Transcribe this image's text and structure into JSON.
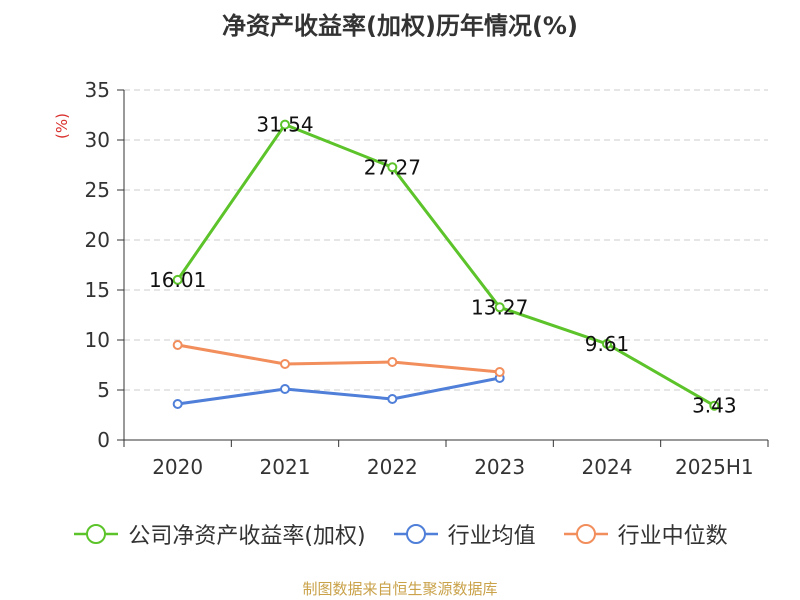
{
  "chart_data": {
    "type": "line",
    "title": "净资产收益率(加权)历年情况(%)",
    "ylabel": "(%)",
    "categories": [
      "2020",
      "2021",
      "2022",
      "2023",
      "2024",
      "2025H1"
    ],
    "ylim": [
      0,
      35
    ],
    "yticks": [
      0,
      5,
      10,
      15,
      20,
      25,
      30,
      35
    ],
    "grid": true,
    "legend_position": "bottom",
    "series": [
      {
        "name": "公司净资产收益率(加权)",
        "color": "#5cc42a",
        "values": [
          16.01,
          31.54,
          27.27,
          13.27,
          9.61,
          3.43
        ],
        "labels": [
          "16.01",
          "31.54",
          "27.27",
          "13.27",
          "9.61",
          "3.43"
        ]
      },
      {
        "name": "行业均值",
        "color": "#4f7fd8",
        "values": [
          3.6,
          5.1,
          4.1,
          6.2,
          null,
          null
        ]
      },
      {
        "name": "行业中位数",
        "color": "#f28e5c",
        "values": [
          9.5,
          7.6,
          7.8,
          6.8,
          null,
          null
        ]
      }
    ]
  },
  "source": "制图数据来自恒生聚源数据库"
}
